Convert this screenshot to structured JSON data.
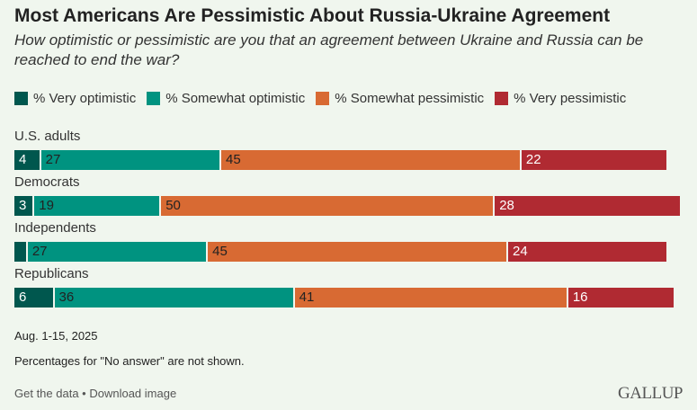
{
  "title": "Most Americans Are Pessimistic About Russia-Ukraine Agreement",
  "subtitle": "How optimistic or pessimistic are you that an agreement between Ukraine and Russia can be reached to end the war?",
  "chart_data": {
    "type": "bar",
    "orientation": "horizontal-stacked",
    "categories": [
      "U.S. adults",
      "Democrats",
      "Independents",
      "Republicans"
    ],
    "series": [
      {
        "name": "% Very optimistic",
        "color": "#00574e",
        "values": [
          4,
          3,
          2,
          6
        ]
      },
      {
        "name": "% Somewhat optimistic",
        "color": "#009380",
        "values": [
          27,
          19,
          27,
          36
        ]
      },
      {
        "name": "% Somewhat pessimistic",
        "color": "#d86a33",
        "values": [
          45,
          50,
          45,
          41
        ]
      },
      {
        "name": "% Very pessimistic",
        "color": "#b02a32",
        "values": [
          22,
          28,
          24,
          16
        ]
      }
    ],
    "legend_position": "top",
    "xlim": [
      0,
      100
    ],
    "grid": false
  },
  "notes": {
    "date": "Aug. 1-15, 2025",
    "footnote": "Percentages for \"No answer\" are not shown."
  },
  "footer": {
    "get_data": "Get the data",
    "separator": " • ",
    "download": "Download image",
    "logo": "GALLUP"
  }
}
